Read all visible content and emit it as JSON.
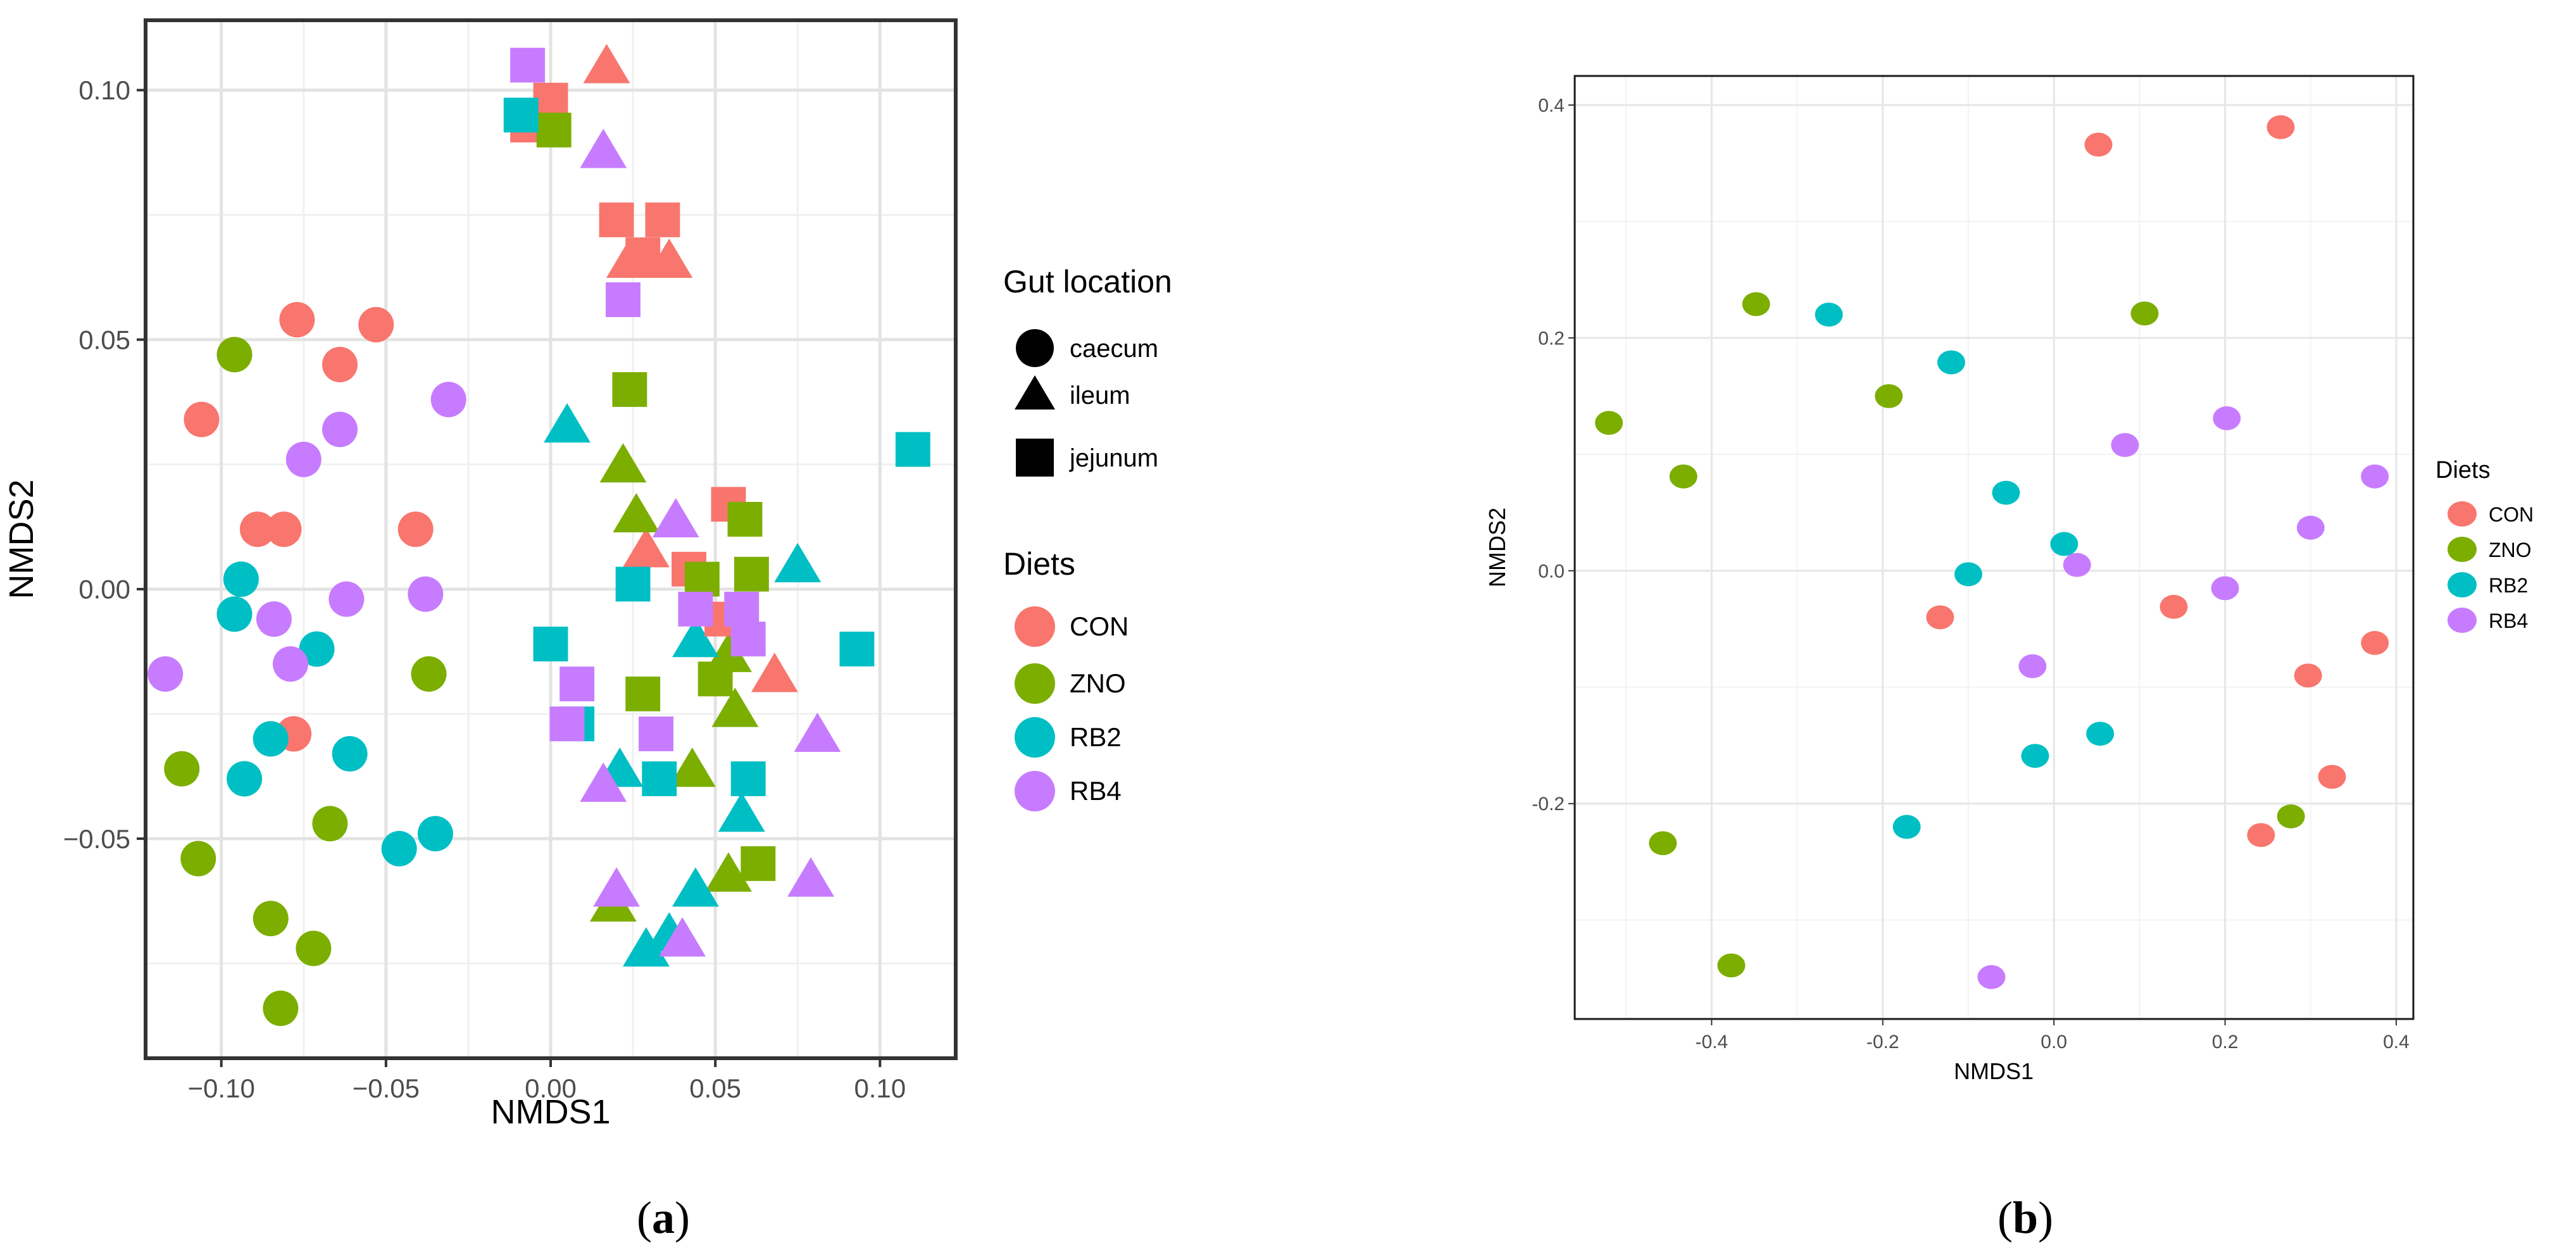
{
  "colors": {
    "CON": "#F8766D",
    "ZNO": "#7CAE00",
    "RB2": "#00BFC4",
    "RB4": "#C77CFF"
  },
  "panel_labels": {
    "a_open": "(",
    "a_letter": "a",
    "a_close": ")",
    "b_open": "(",
    "b_letter": "b",
    "b_close": ")"
  },
  "chart_data": [
    {
      "type": "scatter",
      "panel": "a",
      "xlabel": "NMDS1",
      "ylabel": "NMDS2",
      "xlim": [
        -0.123,
        0.123
      ],
      "ylim": [
        -0.094,
        0.114
      ],
      "xticks": [
        -0.1,
        -0.05,
        0.0,
        0.05,
        0.1
      ],
      "xtick_labels": [
        "−0.10",
        "−0.05",
        "0.00",
        "0.05",
        "0.10"
      ],
      "yticks": [
        -0.05,
        0.0,
        0.05,
        0.1
      ],
      "ytick_labels": [
        "−0.05",
        "0.00",
        "0.05",
        "0.10"
      ],
      "legend_shape_title": "Gut location",
      "legend_shapes": [
        {
          "shape": "circle",
          "label": "caecum"
        },
        {
          "shape": "triangle",
          "label": "ileum"
        },
        {
          "shape": "square",
          "label": "jejunum"
        }
      ],
      "legend_color_title": "Diets",
      "legend_colors": [
        "CON",
        "ZNO",
        "RB2",
        "RB4"
      ],
      "points": [
        {
          "x": -0.077,
          "y": 0.054,
          "diet": "CON",
          "loc": "caecum"
        },
        {
          "x": -0.053,
          "y": 0.053,
          "diet": "CON",
          "loc": "caecum"
        },
        {
          "x": -0.064,
          "y": 0.045,
          "diet": "CON",
          "loc": "caecum"
        },
        {
          "x": -0.106,
          "y": 0.034,
          "diet": "CON",
          "loc": "caecum"
        },
        {
          "x": -0.089,
          "y": 0.012,
          "diet": "CON",
          "loc": "caecum"
        },
        {
          "x": -0.081,
          "y": 0.012,
          "diet": "CON",
          "loc": "caecum"
        },
        {
          "x": -0.041,
          "y": 0.012,
          "diet": "CON",
          "loc": "caecum"
        },
        {
          "x": -0.078,
          "y": -0.029,
          "diet": "CON",
          "loc": "caecum"
        },
        {
          "x": -0.096,
          "y": 0.047,
          "diet": "ZNO",
          "loc": "caecum"
        },
        {
          "x": -0.037,
          "y": -0.017,
          "diet": "ZNO",
          "loc": "caecum"
        },
        {
          "x": -0.112,
          "y": -0.036,
          "diet": "ZNO",
          "loc": "caecum"
        },
        {
          "x": -0.107,
          "y": -0.054,
          "diet": "ZNO",
          "loc": "caecum"
        },
        {
          "x": -0.067,
          "y": -0.047,
          "diet": "ZNO",
          "loc": "caecum"
        },
        {
          "x": -0.085,
          "y": -0.066,
          "diet": "ZNO",
          "loc": "caecum"
        },
        {
          "x": -0.072,
          "y": -0.072,
          "diet": "ZNO",
          "loc": "caecum"
        },
        {
          "x": -0.082,
          "y": -0.084,
          "diet": "ZNO",
          "loc": "caecum"
        },
        {
          "x": -0.094,
          "y": 0.002,
          "diet": "RB2",
          "loc": "caecum"
        },
        {
          "x": -0.096,
          "y": -0.005,
          "diet": "RB2",
          "loc": "caecum"
        },
        {
          "x": -0.071,
          "y": -0.012,
          "diet": "RB2",
          "loc": "caecum"
        },
        {
          "x": -0.085,
          "y": -0.03,
          "diet": "RB2",
          "loc": "caecum"
        },
        {
          "x": -0.061,
          "y": -0.033,
          "diet": "RB2",
          "loc": "caecum"
        },
        {
          "x": -0.093,
          "y": -0.038,
          "diet": "RB2",
          "loc": "caecum"
        },
        {
          "x": -0.046,
          "y": -0.052,
          "diet": "RB2",
          "loc": "caecum"
        },
        {
          "x": -0.035,
          "y": -0.049,
          "diet": "RB2",
          "loc": "caecum"
        },
        {
          "x": -0.031,
          "y": 0.038,
          "diet": "RB4",
          "loc": "caecum"
        },
        {
          "x": -0.064,
          "y": 0.032,
          "diet": "RB4",
          "loc": "caecum"
        },
        {
          "x": -0.075,
          "y": 0.026,
          "diet": "RB4",
          "loc": "caecum"
        },
        {
          "x": -0.038,
          "y": -0.001,
          "diet": "RB4",
          "loc": "caecum"
        },
        {
          "x": -0.062,
          "y": -0.002,
          "diet": "RB4",
          "loc": "caecum"
        },
        {
          "x": -0.084,
          "y": -0.006,
          "diet": "RB4",
          "loc": "caecum"
        },
        {
          "x": -0.079,
          "y": -0.015,
          "diet": "RB4",
          "loc": "caecum"
        },
        {
          "x": -0.117,
          "y": -0.017,
          "diet": "RB4",
          "loc": "caecum"
        },
        {
          "x": 0.017,
          "y": 0.105,
          "diet": "CON",
          "loc": "ileum"
        },
        {
          "x": 0.024,
          "y": 0.066,
          "diet": "CON",
          "loc": "ileum"
        },
        {
          "x": 0.036,
          "y": 0.066,
          "diet": "CON",
          "loc": "ileum"
        },
        {
          "x": 0.029,
          "y": 0.008,
          "diet": "CON",
          "loc": "ileum"
        },
        {
          "x": 0.068,
          "y": -0.017,
          "diet": "CON",
          "loc": "ileum"
        },
        {
          "x": 0.022,
          "y": 0.025,
          "diet": "ZNO",
          "loc": "ileum"
        },
        {
          "x": 0.026,
          "y": 0.015,
          "diet": "ZNO",
          "loc": "ileum"
        },
        {
          "x": 0.054,
          "y": -0.013,
          "diet": "ZNO",
          "loc": "ileum"
        },
        {
          "x": 0.056,
          "y": -0.024,
          "diet": "ZNO",
          "loc": "ileum"
        },
        {
          "x": 0.043,
          "y": -0.036,
          "diet": "ZNO",
          "loc": "ileum"
        },
        {
          "x": 0.054,
          "y": -0.057,
          "diet": "ZNO",
          "loc": "ileum"
        },
        {
          "x": 0.019,
          "y": -0.063,
          "diet": "ZNO",
          "loc": "ileum"
        },
        {
          "x": 0.005,
          "y": 0.033,
          "diet": "RB2",
          "loc": "ileum"
        },
        {
          "x": 0.075,
          "y": 0.005,
          "diet": "RB2",
          "loc": "ileum"
        },
        {
          "x": 0.044,
          "y": -0.01,
          "diet": "RB2",
          "loc": "ileum"
        },
        {
          "x": 0.021,
          "y": -0.036,
          "diet": "RB2",
          "loc": "ileum"
        },
        {
          "x": 0.058,
          "y": -0.045,
          "diet": "RB2",
          "loc": "ileum"
        },
        {
          "x": 0.044,
          "y": -0.06,
          "diet": "RB2",
          "loc": "ileum"
        },
        {
          "x": 0.036,
          "y": -0.069,
          "diet": "RB2",
          "loc": "ileum"
        },
        {
          "x": 0.029,
          "y": -0.072,
          "diet": "RB2",
          "loc": "ileum"
        },
        {
          "x": 0.016,
          "y": 0.088,
          "diet": "RB4",
          "loc": "ileum"
        },
        {
          "x": 0.038,
          "y": 0.014,
          "diet": "RB4",
          "loc": "ileum"
        },
        {
          "x": 0.016,
          "y": -0.039,
          "diet": "RB4",
          "loc": "ileum"
        },
        {
          "x": 0.081,
          "y": -0.029,
          "diet": "RB4",
          "loc": "ileum"
        },
        {
          "x": 0.02,
          "y": -0.06,
          "diet": "RB4",
          "loc": "ileum"
        },
        {
          "x": 0.04,
          "y": -0.07,
          "diet": "RB4",
          "loc": "ileum"
        },
        {
          "x": 0.079,
          "y": -0.058,
          "diet": "RB4",
          "loc": "ileum"
        },
        {
          "x": -0.007,
          "y": 0.093,
          "diet": "CON",
          "loc": "jejunum"
        },
        {
          "x": 0.0,
          "y": 0.098,
          "diet": "CON",
          "loc": "jejunum"
        },
        {
          "x": 0.02,
          "y": 0.074,
          "diet": "CON",
          "loc": "jejunum"
        },
        {
          "x": 0.034,
          "y": 0.074,
          "diet": "CON",
          "loc": "jejunum"
        },
        {
          "x": 0.028,
          "y": 0.067,
          "diet": "CON",
          "loc": "jejunum"
        },
        {
          "x": 0.054,
          "y": 0.017,
          "diet": "CON",
          "loc": "jejunum"
        },
        {
          "x": 0.042,
          "y": 0.004,
          "diet": "CON",
          "loc": "jejunum"
        },
        {
          "x": 0.052,
          "y": -0.006,
          "diet": "CON",
          "loc": "jejunum"
        },
        {
          "x": 0.001,
          "y": 0.092,
          "diet": "ZNO",
          "loc": "jejunum"
        },
        {
          "x": 0.024,
          "y": 0.04,
          "diet": "ZNO",
          "loc": "jejunum"
        },
        {
          "x": 0.059,
          "y": 0.014,
          "diet": "ZNO",
          "loc": "jejunum"
        },
        {
          "x": 0.046,
          "y": 0.002,
          "diet": "ZNO",
          "loc": "jejunum"
        },
        {
          "x": 0.061,
          "y": 0.003,
          "diet": "ZNO",
          "loc": "jejunum"
        },
        {
          "x": 0.05,
          "y": -0.018,
          "diet": "ZNO",
          "loc": "jejunum"
        },
        {
          "x": 0.028,
          "y": -0.021,
          "diet": "ZNO",
          "loc": "jejunum"
        },
        {
          "x": 0.063,
          "y": -0.055,
          "diet": "ZNO",
          "loc": "jejunum"
        },
        {
          "x": -0.009,
          "y": 0.095,
          "diet": "RB2",
          "loc": "jejunum"
        },
        {
          "x": 0.11,
          "y": 0.028,
          "diet": "RB2",
          "loc": "jejunum"
        },
        {
          "x": 0.025,
          "y": 0.001,
          "diet": "RB2",
          "loc": "jejunum"
        },
        {
          "x": 0.0,
          "y": -0.011,
          "diet": "RB2",
          "loc": "jejunum"
        },
        {
          "x": 0.093,
          "y": -0.012,
          "diet": "RB2",
          "loc": "jejunum"
        },
        {
          "x": 0.008,
          "y": -0.027,
          "diet": "RB2",
          "loc": "jejunum"
        },
        {
          "x": 0.033,
          "y": -0.038,
          "diet": "RB2",
          "loc": "jejunum"
        },
        {
          "x": 0.06,
          "y": -0.038,
          "diet": "RB2",
          "loc": "jejunum"
        },
        {
          "x": -0.007,
          "y": 0.105,
          "diet": "RB4",
          "loc": "jejunum"
        },
        {
          "x": 0.022,
          "y": 0.058,
          "diet": "RB4",
          "loc": "jejunum"
        },
        {
          "x": 0.044,
          "y": -0.004,
          "diet": "RB4",
          "loc": "jejunum"
        },
        {
          "x": 0.058,
          "y": -0.004,
          "diet": "RB4",
          "loc": "jejunum"
        },
        {
          "x": 0.06,
          "y": -0.01,
          "diet": "RB4",
          "loc": "jejunum"
        },
        {
          "x": 0.008,
          "y": -0.019,
          "diet": "RB4",
          "loc": "jejunum"
        },
        {
          "x": 0.005,
          "y": -0.027,
          "diet": "RB4",
          "loc": "jejunum"
        },
        {
          "x": 0.032,
          "y": -0.029,
          "diet": "RB4",
          "loc": "jejunum"
        }
      ]
    },
    {
      "type": "scatter",
      "panel": "b",
      "xlabel": "NMDS1",
      "ylabel": "NMDS2",
      "xlim": [
        -0.56,
        0.42
      ],
      "ylim": [
        -0.385,
        0.425
      ],
      "xticks": [
        -0.4,
        -0.2,
        0.0,
        0.2,
        0.4
      ],
      "xtick_labels": [
        "-0.4",
        "-0.2",
        "0.0",
        "0.2",
        "0.4"
      ],
      "yticks": [
        -0.2,
        0.0,
        0.2,
        0.4
      ],
      "ytick_labels": [
        "-0.2",
        "0.0",
        "0.2",
        "0.4"
      ],
      "legend_color_title": "Diets",
      "legend_colors": [
        "CON",
        "ZNO",
        "RB2",
        "RB4"
      ],
      "points": [
        {
          "x": 0.052,
          "y": 0.366,
          "diet": "CON"
        },
        {
          "x": 0.265,
          "y": 0.381,
          "diet": "CON"
        },
        {
          "x": -0.133,
          "y": -0.04,
          "diet": "CON"
        },
        {
          "x": 0.14,
          "y": -0.031,
          "diet": "CON"
        },
        {
          "x": 0.375,
          "y": -0.062,
          "diet": "CON"
        },
        {
          "x": 0.297,
          "y": -0.09,
          "diet": "CON"
        },
        {
          "x": 0.325,
          "y": -0.177,
          "diet": "CON"
        },
        {
          "x": 0.242,
          "y": -0.227,
          "diet": "CON"
        },
        {
          "x": -0.348,
          "y": 0.229,
          "diet": "ZNO"
        },
        {
          "x": 0.106,
          "y": 0.221,
          "diet": "ZNO"
        },
        {
          "x": -0.193,
          "y": 0.15,
          "diet": "ZNO"
        },
        {
          "x": -0.52,
          "y": 0.127,
          "diet": "ZNO"
        },
        {
          "x": -0.433,
          "y": 0.081,
          "diet": "ZNO"
        },
        {
          "x": 0.277,
          "y": -0.211,
          "diet": "ZNO"
        },
        {
          "x": -0.457,
          "y": -0.234,
          "diet": "ZNO"
        },
        {
          "x": -0.377,
          "y": -0.339,
          "diet": "ZNO"
        },
        {
          "x": -0.263,
          "y": 0.22,
          "diet": "RB2"
        },
        {
          "x": -0.12,
          "y": 0.179,
          "diet": "RB2"
        },
        {
          "x": -0.056,
          "y": 0.067,
          "diet": "RB2"
        },
        {
          "x": 0.012,
          "y": 0.023,
          "diet": "RB2"
        },
        {
          "x": -0.1,
          "y": -0.003,
          "diet": "RB2"
        },
        {
          "x": -0.022,
          "y": -0.159,
          "diet": "RB2"
        },
        {
          "x": 0.054,
          "y": -0.14,
          "diet": "RB2"
        },
        {
          "x": -0.172,
          "y": -0.22,
          "diet": "RB2"
        },
        {
          "x": 0.202,
          "y": 0.131,
          "diet": "RB4"
        },
        {
          "x": 0.083,
          "y": 0.108,
          "diet": "RB4"
        },
        {
          "x": 0.375,
          "y": 0.081,
          "diet": "RB4"
        },
        {
          "x": 0.3,
          "y": 0.037,
          "diet": "RB4"
        },
        {
          "x": 0.027,
          "y": 0.005,
          "diet": "RB4"
        },
        {
          "x": 0.2,
          "y": -0.015,
          "diet": "RB4"
        },
        {
          "x": -0.025,
          "y": -0.082,
          "diet": "RB4"
        },
        {
          "x": -0.073,
          "y": -0.349,
          "diet": "RB4"
        }
      ]
    }
  ]
}
